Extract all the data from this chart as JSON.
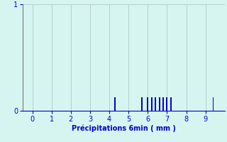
{
  "xlabel": "Précipitations 6min ( mm )",
  "ylabel": "",
  "xlim": [
    -0.5,
    10
  ],
  "ylim": [
    0,
    1
  ],
  "yticks": [
    0,
    1
  ],
  "xticks": [
    0,
    1,
    2,
    3,
    4,
    5,
    6,
    7,
    8,
    9
  ],
  "background_color": "#d6f5f0",
  "bar_color": "#0000cc",
  "grid_color": "#b0c8c8",
  "bar_positions": [
    4.3,
    5.7,
    6.0,
    6.2,
    6.4,
    6.6,
    6.8,
    7.0,
    7.2,
    9.4
  ],
  "bar_heights": [
    0.13,
    0.13,
    0.13,
    0.13,
    0.13,
    0.13,
    0.13,
    0.13,
    0.13,
    0.13
  ],
  "bar_width": 0.07,
  "axis_color": "#0000cc",
  "spine_color": "#777777",
  "tick_color": "#0000cc",
  "label_fontsize": 7,
  "tick_fontsize": 7
}
